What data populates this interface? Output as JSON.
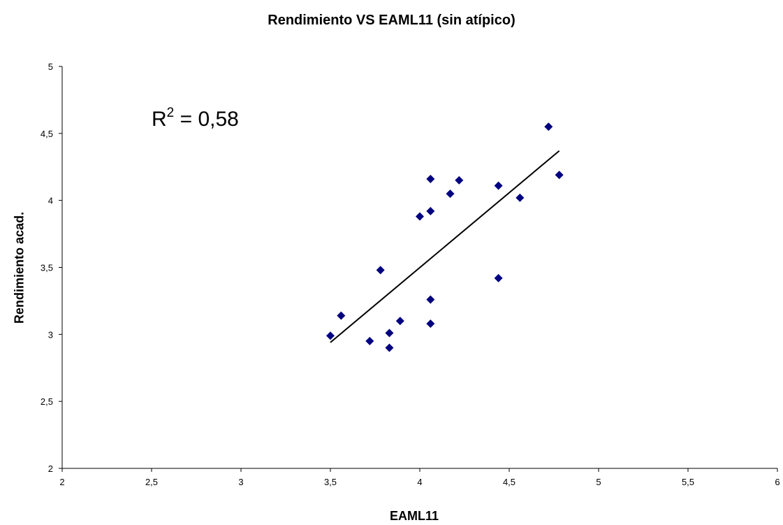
{
  "chart_data": {
    "type": "scatter",
    "title": "Rendimiento VS EAML11 (sin atípico)",
    "xlabel": "EAML11",
    "ylabel": "Rendimiento acad.",
    "xlim": [
      2,
      6
    ],
    "ylim": [
      2,
      5
    ],
    "x_ticks": [
      2,
      2.5,
      3,
      3.5,
      4,
      4.5,
      5,
      5.5,
      6
    ],
    "y_ticks": [
      2,
      2.5,
      3,
      3.5,
      4,
      4.5,
      5
    ],
    "x_tick_labels": [
      "2",
      "2,5",
      "3",
      "3,5",
      "4",
      "4,5",
      "5",
      "5,5",
      "6"
    ],
    "y_tick_labels": [
      "2",
      "2,5",
      "3",
      "3,5",
      "4",
      "4,5",
      "5"
    ],
    "grid": false,
    "legend": "none",
    "marker": "diamond",
    "marker_color": "#000080",
    "series": [
      {
        "points": [
          {
            "x": 3.5,
            "y": 2.99
          },
          {
            "x": 3.56,
            "y": 3.14
          },
          {
            "x": 3.72,
            "y": 2.95
          },
          {
            "x": 3.78,
            "y": 3.48
          },
          {
            "x": 3.83,
            "y": 3.01
          },
          {
            "x": 3.83,
            "y": 2.9
          },
          {
            "x": 3.89,
            "y": 3.1
          },
          {
            "x": 4.0,
            "y": 3.88
          },
          {
            "x": 4.06,
            "y": 4.16
          },
          {
            "x": 4.06,
            "y": 3.92
          },
          {
            "x": 4.06,
            "y": 3.26
          },
          {
            "x": 4.06,
            "y": 3.08
          },
          {
            "x": 4.17,
            "y": 4.05
          },
          {
            "x": 4.22,
            "y": 4.15
          },
          {
            "x": 4.44,
            "y": 4.11
          },
          {
            "x": 4.44,
            "y": 3.42
          },
          {
            "x": 4.56,
            "y": 4.02
          },
          {
            "x": 4.72,
            "y": 4.55
          },
          {
            "x": 4.78,
            "y": 4.19
          }
        ]
      }
    ],
    "trendline": {
      "type": "linear",
      "x_start": 3.5,
      "y_start": 2.94,
      "x_end": 4.78,
      "y_end": 4.37,
      "color": "#000000"
    },
    "annotation": {
      "r2_base": "R",
      "r2_sup": "2",
      "r2_value": " = 0,58"
    }
  }
}
